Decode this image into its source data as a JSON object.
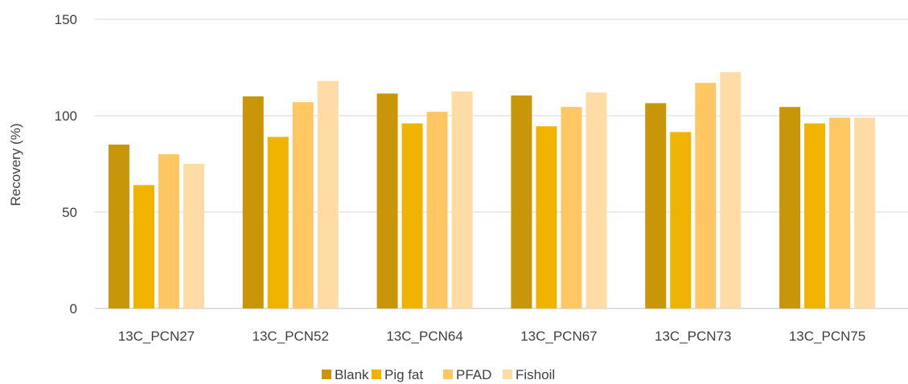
{
  "chart_data": {
    "type": "bar",
    "title": "",
    "xlabel": "",
    "ylabel": "Recovery (%)",
    "ylim": [
      0,
      150
    ],
    "yticks": [
      0,
      50,
      100,
      150
    ],
    "grid": true,
    "legend_position": "bottom",
    "categories": [
      "13C_PCN27",
      "13C_PCN52",
      "13C_PCN64",
      "13C_PCN67",
      "13C_PCN73",
      "13C_PCN75"
    ],
    "series": [
      {
        "name": "Blank",
        "color": "#C9960A",
        "values": [
          85,
          110,
          111.5,
          110.5,
          106.5,
          104.5
        ]
      },
      {
        "name": "Pig fat",
        "color": "#F0B400",
        "values": [
          64,
          89,
          96,
          94.5,
          91.5,
          96
        ]
      },
      {
        "name": "PFAD",
        "color": "#FFC764",
        "values": [
          80,
          107,
          102,
          104.5,
          117,
          99
        ]
      },
      {
        "name": "Fishoil",
        "color": "#FFDCA6",
        "values": [
          75,
          118,
          112.5,
          112,
          122.5,
          99
        ]
      }
    ]
  }
}
